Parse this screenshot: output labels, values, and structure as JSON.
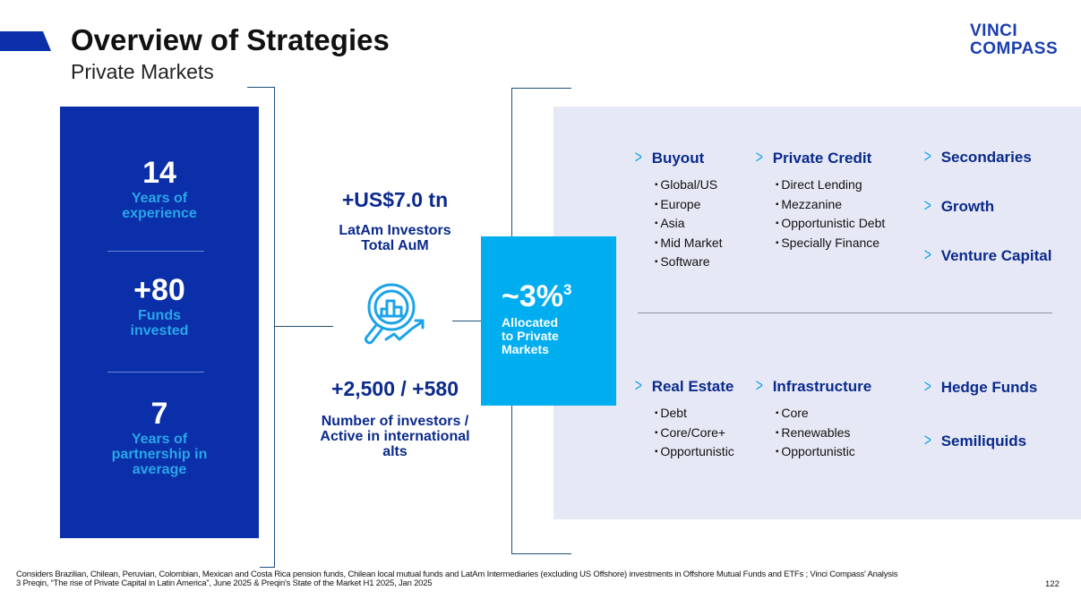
{
  "header": {
    "title": "Overview of Strategies",
    "subtitle": "Private Markets",
    "logo_line1": "VINCI",
    "logo_line2": "COMPASS"
  },
  "stats": [
    {
      "value": "14",
      "label": "Years of experience"
    },
    {
      "value": "+80",
      "label": "Funds invested"
    },
    {
      "value": "7",
      "label": "Years of partnership in average"
    }
  ],
  "middle": {
    "aum_value": "+US$7.0 tn",
    "aum_label": "LatAm Investors Total AuM",
    "investors_value": "+2,500 / +580",
    "investors_label": "Number of investors / Active in international alts",
    "icon": "magnifier-chart-icon"
  },
  "allocation": {
    "value": "~3%",
    "footnote_ref": "3",
    "label": "Allocated to Private Markets"
  },
  "strategies": [
    {
      "title": "Buyout",
      "items": [
        "Global/US",
        "Europe",
        "Asia",
        "Mid Market",
        "Software"
      ]
    },
    {
      "title": "Private Credit",
      "items": [
        "Direct Lending",
        "Mezzanine",
        "Opportunistic Debt",
        "Specially Finance"
      ]
    },
    {
      "title": "Secondaries",
      "items": []
    },
    {
      "title": "Growth",
      "items": []
    },
    {
      "title": "Venture Capital",
      "items": []
    },
    {
      "title": "Real Estate",
      "items": [
        "Debt",
        "Core/Core+",
        "Opportunistic"
      ]
    },
    {
      "title": "Infrastructure",
      "items": [
        "Core",
        "Renewables",
        "Opportunistic"
      ]
    },
    {
      "title": "Hedge Funds",
      "items": []
    },
    {
      "title": "Semiliquids",
      "items": []
    }
  ],
  "footer": {
    "note1": "Considers Brazilian, Chilean, Peruvian, Colombian, Mexican and Costa Rica pension funds, Chilean local mutual funds  and LatAm Intermediaries (excluding US Offshore) investments in Offshore Mutual Funds and ETFs ; Vinci Compass' Analysis",
    "note2": "3 Preqin, “The rise of Private Capital in Latin America”, June 2025 & Preqin's State of the Market H1 2025, Jan 2025",
    "page": "122"
  },
  "colors": {
    "navy": "#0a2fa8",
    "cyan": "#00adef",
    "panel": "#e6e9f5"
  }
}
